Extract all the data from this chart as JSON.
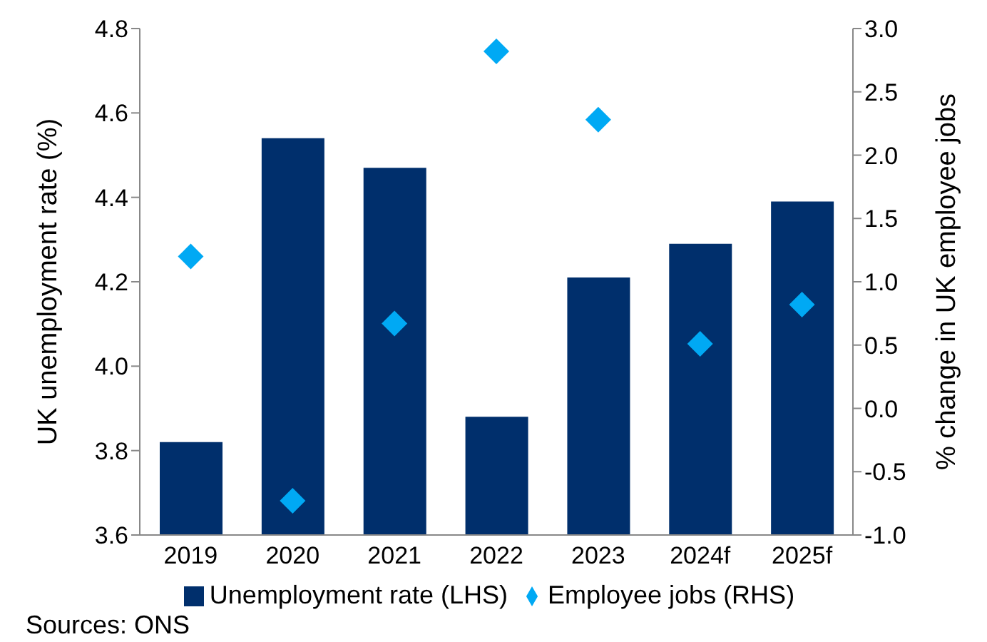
{
  "chart_data": {
    "type": "bar",
    "categories": [
      "2019",
      "2020",
      "2021",
      "2022",
      "2023",
      "2024f",
      "2025f"
    ],
    "series": [
      {
        "name": "Unemployment rate (LHS)",
        "color": "#002f6c",
        "values": [
          3.82,
          4.54,
          4.47,
          3.88,
          4.21,
          4.29,
          4.39
        ]
      },
      {
        "name": "Employee jobs (RHS)",
        "type": "scatter",
        "axis": "y2",
        "color": "#00a9f4",
        "values": [
          1.2,
          -0.73,
          0.67,
          2.82,
          2.28,
          0.51,
          0.82
        ]
      }
    ],
    "ylabel": "UK unemployment rate (%)",
    "y2label": "% change in UK employee jobs",
    "ylim": [
      3.6,
      4.8
    ],
    "yticks": [
      {
        "value": 3.6,
        "label": "3.6"
      },
      {
        "value": 3.8,
        "label": "3.8"
      },
      {
        "value": 4.0,
        "label": "4.0"
      },
      {
        "value": 4.2,
        "label": "4.2"
      },
      {
        "value": 4.4,
        "label": "4.4"
      },
      {
        "value": 4.6,
        "label": "4.6"
      },
      {
        "value": 4.8,
        "label": "4.8"
      }
    ],
    "y2lim": [
      -1.0,
      3.0
    ],
    "y2ticks": [
      {
        "value": -1.0,
        "label": "-1.0"
      },
      {
        "value": -0.5,
        "label": "-0.5"
      },
      {
        "value": 0.0,
        "label": "0.0"
      },
      {
        "value": 0.5,
        "label": "0.5"
      },
      {
        "value": 1.0,
        "label": "1.0"
      },
      {
        "value": 1.5,
        "label": "1.5"
      },
      {
        "value": 2.0,
        "label": "2.0"
      },
      {
        "value": 2.5,
        "label": "2.5"
      },
      {
        "value": 3.0,
        "label": "3.0"
      }
    ],
    "marker": "diamond",
    "legend": "bottom",
    "grid": false,
    "annotations": [
      "Sources: ONS"
    ]
  }
}
